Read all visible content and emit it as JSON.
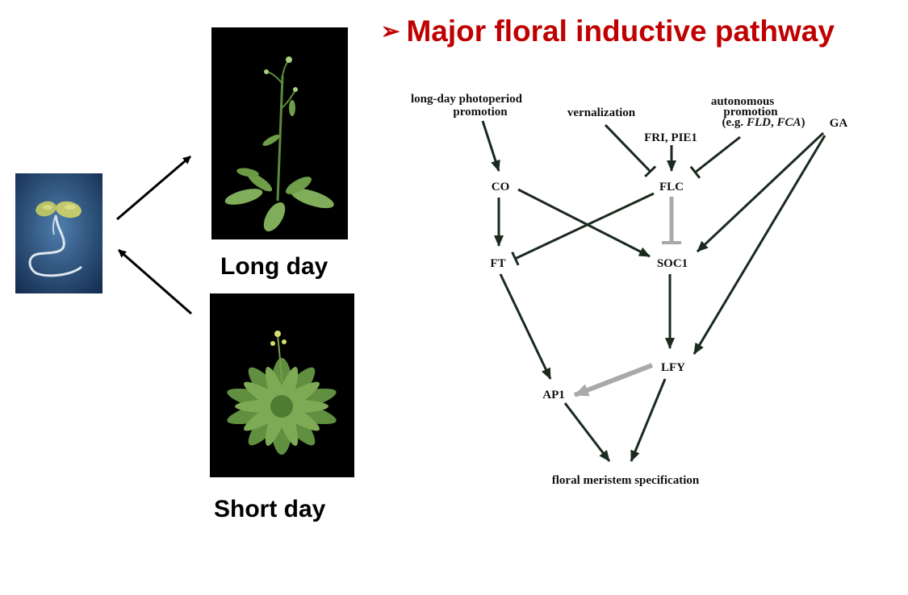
{
  "slide": {
    "title_bullet": "➢",
    "title": "Major floral inductive pathway",
    "captions": {
      "long_day": "Long day",
      "short_day": "Short day"
    }
  },
  "diagram": {
    "nodes": {
      "photoperiod_line1": "long-day photoperiod",
      "photoperiod_line2": "promotion",
      "vernalization": "vernalization",
      "autonomous_line1": "autonomous",
      "autonomous_line2": "promotion",
      "autonomous_eg_prefix": "(e.g. ",
      "autonomous_eg_fld": "FLD",
      "autonomous_eg_sep": ", ",
      "autonomous_eg_fca": "FCA",
      "autonomous_eg_suffix": ")",
      "ga": "GA",
      "fri_pie1": "FRI, PIE1",
      "co": "CO",
      "flc": "FLC",
      "ft": "FT",
      "soc1": "SOC1",
      "lfy": "LFY",
      "ap1": "AP1",
      "floral_meristem": "floral meristem specification"
    },
    "edges": [
      {
        "from": "long-day photoperiod promotion",
        "to": "CO",
        "type": "activation"
      },
      {
        "from": "vernalization",
        "to": "FLC",
        "type": "repression"
      },
      {
        "from": "FRI, PIE1",
        "to": "FLC",
        "type": "activation"
      },
      {
        "from": "autonomous promotion",
        "to": "FLC",
        "type": "repression"
      },
      {
        "from": "GA",
        "to": "SOC1",
        "type": "activation"
      },
      {
        "from": "GA",
        "to": "LFY",
        "type": "activation"
      },
      {
        "from": "CO",
        "to": "FT",
        "type": "activation"
      },
      {
        "from": "CO",
        "to": "SOC1",
        "type": "activation"
      },
      {
        "from": "FLC",
        "to": "FT",
        "type": "repression"
      },
      {
        "from": "FLC",
        "to": "SOC1",
        "type": "repression",
        "color": "#a9a9a9"
      },
      {
        "from": "FT",
        "to": "AP1",
        "type": "activation"
      },
      {
        "from": "SOC1",
        "to": "LFY",
        "type": "activation"
      },
      {
        "from": "LFY",
        "to": "AP1",
        "type": "activation",
        "color": "#a9a9a9"
      },
      {
        "from": "AP1",
        "to": "floral meristem specification",
        "type": "activation"
      },
      {
        "from": "LFY",
        "to": "floral meristem specification",
        "type": "activation"
      }
    ]
  },
  "colors": {
    "title": "#c00000",
    "arrow": "#1a2a1e",
    "gray_arrow": "#a9a9a9"
  }
}
